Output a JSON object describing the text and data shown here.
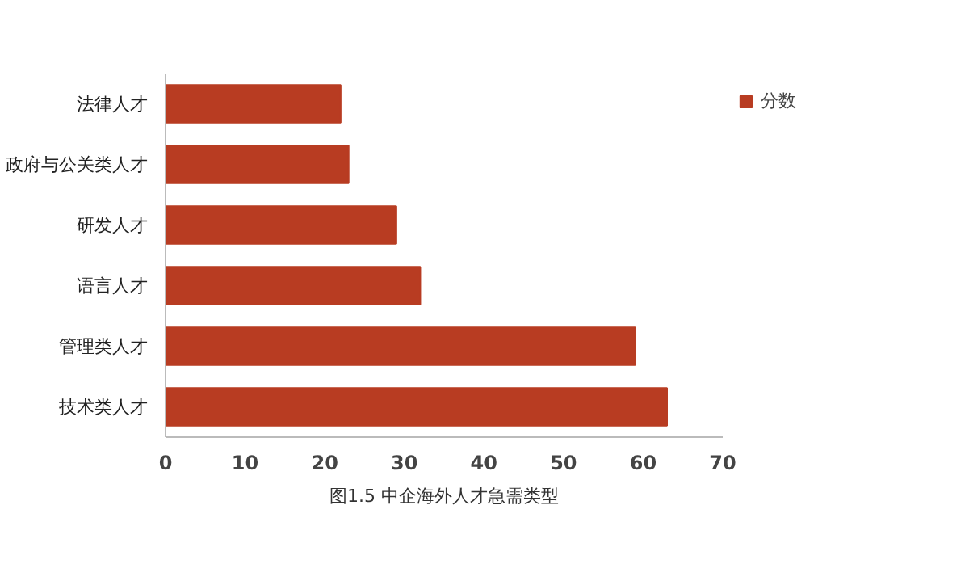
{
  "chart_data": {
    "type": "bar",
    "orientation": "horizontal",
    "categories": [
      "法律人才",
      "政府与公关类人才",
      "研发人才",
      "语言人才",
      "管理类人才",
      "技术类人才"
    ],
    "series": [
      {
        "name": "分数",
        "color": "#b83c22",
        "values": [
          22,
          23,
          29,
          32,
          59,
          63
        ]
      }
    ],
    "xlim": [
      0,
      70
    ],
    "xticks": [
      0,
      10,
      20,
      30,
      40,
      50,
      60,
      70
    ],
    "grid": false,
    "legend": "right",
    "annotations": [
      "图1.5 中企海外人才急需类型"
    ]
  }
}
